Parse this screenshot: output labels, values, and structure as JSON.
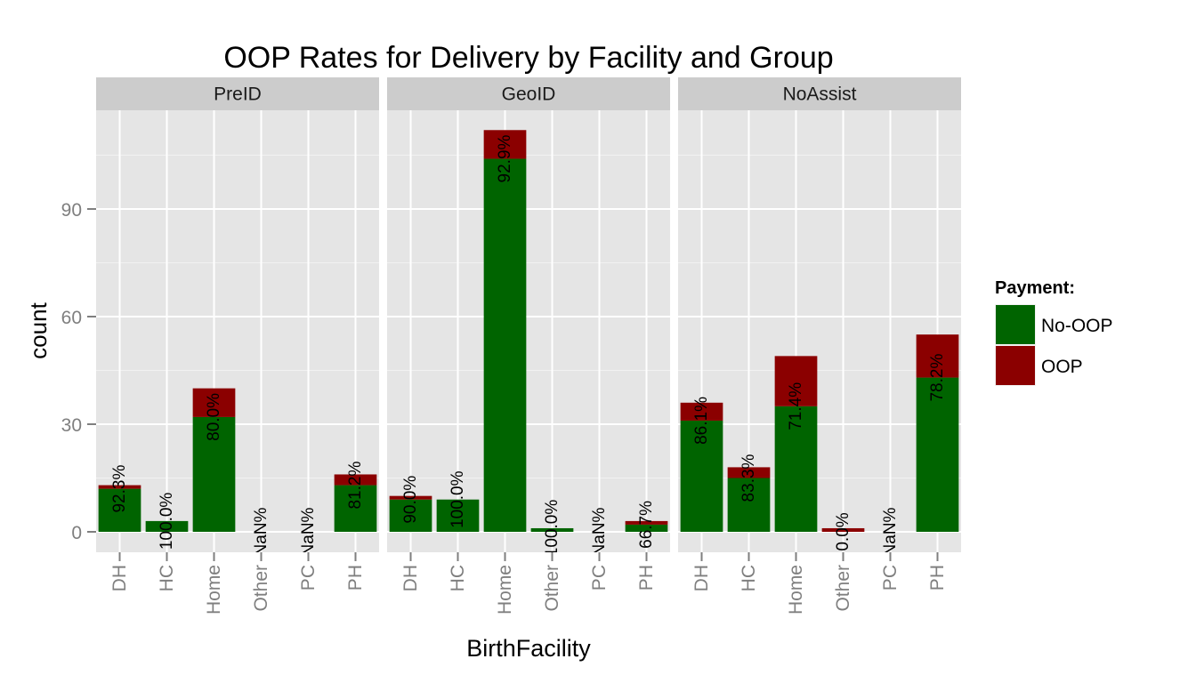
{
  "chart_data": {
    "type": "bar",
    "stacked": true,
    "title": "OOP Rates for Delivery by Facility and Group",
    "xlabel": "BirthFacility",
    "ylabel": "count",
    "ylim": [
      -4,
      120
    ],
    "y_ticks": [
      0,
      30,
      60,
      90
    ],
    "grid": true,
    "categories": [
      "DH",
      "HC",
      "Home",
      "Other",
      "PC",
      "PH"
    ],
    "legend": {
      "title": "Payment:",
      "position": "right",
      "items": [
        {
          "label": "No-OOP",
          "color": "#006400"
        },
        {
          "label": "OOP",
          "color": "#8B0000"
        }
      ]
    },
    "facets": [
      {
        "name": "PreID",
        "series": [
          {
            "name": "No-OOP",
            "values": [
              12,
              3,
              32,
              0,
              0,
              13
            ]
          },
          {
            "name": "OOP",
            "values": [
              1,
              0,
              8,
              0,
              0,
              3
            ]
          }
        ],
        "labels": [
          "92.3%",
          "100.0%",
          "80.0%",
          "NaN%",
          "NaN%",
          "81.2%"
        ]
      },
      {
        "name": "GeoID",
        "series": [
          {
            "name": "No-OOP",
            "values": [
              9,
              9,
              104,
              1,
              0,
              2
            ]
          },
          {
            "name": "OOP",
            "values": [
              1,
              0,
              8,
              0,
              0,
              1
            ]
          }
        ],
        "labels": [
          "90.0%",
          "100.0%",
          "92.9%",
          "100.0%",
          "NaN%",
          "66.7%"
        ]
      },
      {
        "name": "NoAssist",
        "series": [
          {
            "name": "No-OOP",
            "values": [
              31,
              15,
              35,
              0,
              0,
              43
            ]
          },
          {
            "name": "OOP",
            "values": [
              5,
              3,
              14,
              1,
              0,
              12
            ]
          }
        ],
        "labels": [
          "86.1%",
          "83.3%",
          "71.4%",
          "0.0%",
          "NaN%",
          "78.2%"
        ]
      }
    ]
  }
}
